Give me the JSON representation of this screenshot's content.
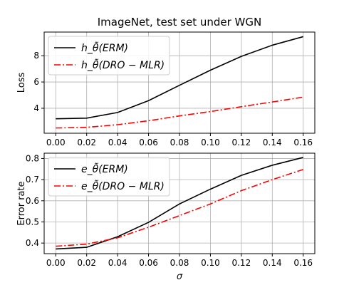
{
  "chart_data": [
    {
      "type": "line",
      "title": "ImageNet, test set under WGN",
      "xlabel": "",
      "ylabel": "Loss",
      "x": [
        0.0,
        0.02,
        0.04,
        0.06,
        0.08,
        0.1,
        0.12,
        0.14,
        0.16
      ],
      "x_ticks": [
        "0.00",
        "0.02",
        "0.04",
        "0.06",
        "0.08",
        "0.10",
        "0.12",
        "0.14",
        "0.16"
      ],
      "xlim": [
        -0.0075,
        0.1675
      ],
      "ylim": [
        2.1,
        9.8
      ],
      "y_ticks": [
        4,
        6,
        8
      ],
      "grid": true,
      "legend": "top-left",
      "series": [
        {
          "name": "h_θ̃(ERM)",
          "color": "#000000",
          "style": "solid",
          "values": [
            3.2,
            3.25,
            3.68,
            4.58,
            5.75,
            6.9,
            7.95,
            8.8,
            9.45
          ]
        },
        {
          "name": "h_θ̃(DRO − MLR)",
          "color": "#ff0000",
          "style": "dashdot",
          "values": [
            2.5,
            2.55,
            2.75,
            3.05,
            3.42,
            3.75,
            4.12,
            4.48,
            4.85
          ]
        }
      ]
    },
    {
      "type": "line",
      "title": "",
      "xlabel": "σ",
      "ylabel": "Error rate",
      "x": [
        0.0,
        0.02,
        0.04,
        0.06,
        0.08,
        0.1,
        0.12,
        0.14,
        0.16
      ],
      "x_ticks": [
        "0.00",
        "0.02",
        "0.04",
        "0.06",
        "0.08",
        "0.10",
        "0.12",
        "0.14",
        "0.16"
      ],
      "xlim": [
        -0.0075,
        0.1675
      ],
      "ylim": [
        0.35,
        0.825
      ],
      "y_ticks": [
        0.4,
        0.5,
        0.6,
        0.7,
        0.8
      ],
      "grid": true,
      "legend": "top-left",
      "series": [
        {
          "name": "e_θ̃(ERM)",
          "color": "#000000",
          "style": "solid",
          "values": [
            0.372,
            0.38,
            0.43,
            0.498,
            0.585,
            0.655,
            0.72,
            0.768,
            0.805
          ]
        },
        {
          "name": "e_θ̃(DRO − MLR)",
          "color": "#ff0000",
          "style": "dashdot",
          "values": [
            0.385,
            0.395,
            0.425,
            0.475,
            0.53,
            0.585,
            0.648,
            0.7,
            0.748
          ]
        }
      ]
    }
  ]
}
